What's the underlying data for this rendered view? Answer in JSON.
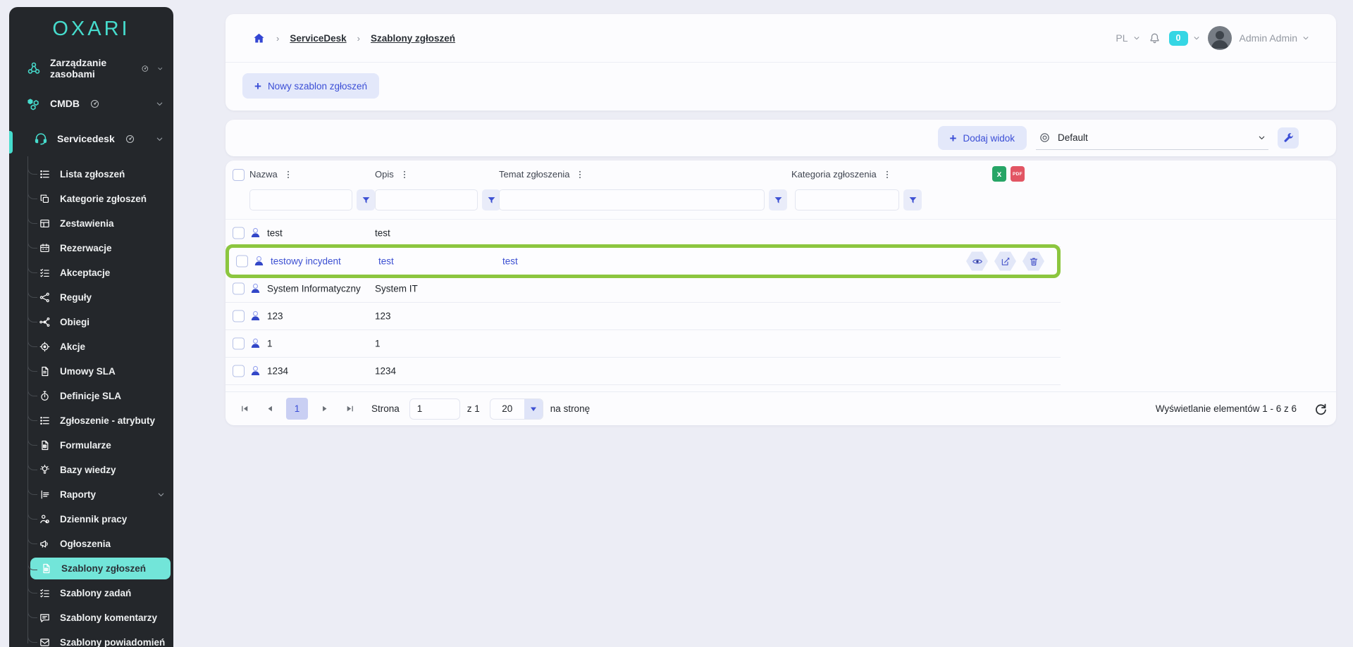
{
  "app": {
    "logo_text": "OXARI"
  },
  "topbar": {
    "language": "PL",
    "notification_count": "0",
    "user_name": "Admin Admin"
  },
  "breadcrumb": {
    "items": [
      "ServiceDesk",
      "Szablony zgłoszeń"
    ]
  },
  "actions": {
    "new_template_label": "Nowy szablon zgłoszeń",
    "add_view_label": "Dodaj widok",
    "view_selected": "Default"
  },
  "sidebar": {
    "sections": [
      {
        "label": "Zarządzanie zasobami",
        "icon": "hub",
        "chevron": "chevron-down"
      },
      {
        "label": "CMDB",
        "icon": "hexes",
        "chevron": "chevron-down"
      },
      {
        "label": "Servicedesk",
        "icon": "headset",
        "chevron": "chevron-down",
        "active": true
      }
    ],
    "items": [
      {
        "label": "Lista zgłoszeń",
        "icon": "list"
      },
      {
        "label": "Kategorie zgłoszeń",
        "icon": "copy"
      },
      {
        "label": "Zestawienia",
        "icon": "grid"
      },
      {
        "label": "Rezerwacje",
        "icon": "calendar"
      },
      {
        "label": "Akceptacje",
        "icon": "checklist"
      },
      {
        "label": "Reguły",
        "icon": "share"
      },
      {
        "label": "Obiegi",
        "icon": "workflow"
      },
      {
        "label": "Akcje",
        "icon": "target"
      },
      {
        "label": "Umowy SLA",
        "icon": "doc"
      },
      {
        "label": "Definicje SLA",
        "icon": "stopwatch"
      },
      {
        "label": "Zgłoszenie - atrybuty",
        "icon": "list"
      },
      {
        "label": "Formularze",
        "icon": "doc-form"
      },
      {
        "label": "Bazy wiedzy",
        "icon": "bulb"
      },
      {
        "label": "Raporty",
        "icon": "chart",
        "chevron": "chevron-down"
      },
      {
        "label": "Dziennik pracy",
        "icon": "person-clock"
      },
      {
        "label": "Ogłoszenia",
        "icon": "megaphone"
      },
      {
        "label": "Szablony zgłoszeń",
        "icon": "doc-form",
        "active": true
      },
      {
        "label": "Szablony zadań",
        "icon": "checklist"
      },
      {
        "label": "Szablony komentarzy",
        "icon": "comment"
      },
      {
        "label": "Szablony powiadomień",
        "icon": "mail"
      }
    ]
  },
  "table": {
    "columns": [
      {
        "label": "Nazwa"
      },
      {
        "label": "Opis"
      },
      {
        "label": "Temat zgłoszenia"
      },
      {
        "label": "Kategoria zgłoszenia"
      }
    ],
    "rows": [
      {
        "name": "test",
        "description": "test",
        "subject": "",
        "category": ""
      },
      {
        "name": "testowy incydent",
        "description": "test",
        "subject": "test",
        "category": "",
        "highlighted": true
      },
      {
        "name": "System Informatyczny",
        "description": "System IT",
        "subject": "",
        "category": ""
      },
      {
        "name": "123",
        "description": "123",
        "subject": "",
        "category": ""
      },
      {
        "name": "1",
        "description": "1",
        "subject": "",
        "category": ""
      },
      {
        "name": "1234",
        "description": "1234",
        "subject": "",
        "category": ""
      }
    ]
  },
  "export": {
    "excel_label": "x",
    "pdf_label": "PDF"
  },
  "pagination": {
    "current_page": "1",
    "page_label": "Strona",
    "page_input": "1",
    "of_total": "z 1",
    "page_size": "20",
    "per_page_label": "na stronę",
    "summary": "Wyświetlanie elementów 1 - 6 z 6"
  },
  "colors": {
    "accent_teal": "#46dccd",
    "accent_blue": "#3b4ed6",
    "highlight_green": "#8cc63f",
    "badge_cyan": "#35d6e4",
    "excel_green": "#27a566",
    "pdf_red": "#e25563",
    "sidebar_bg": "#24272b",
    "page_bg": "#ecedf5"
  }
}
